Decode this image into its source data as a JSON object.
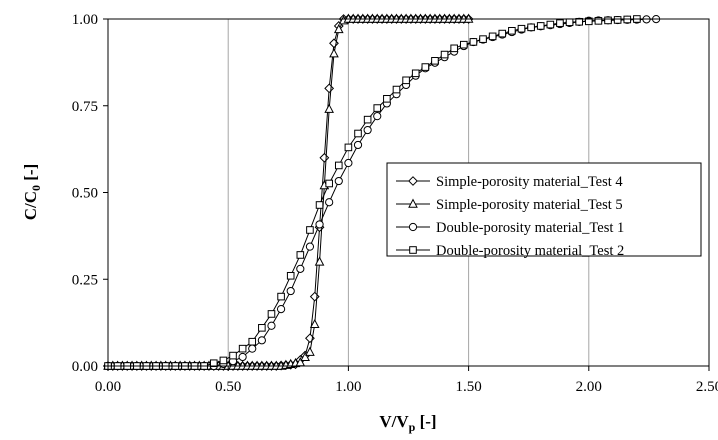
{
  "chart_data": {
    "type": "scatter",
    "xlabel": {
      "main": "V/V",
      "sub": "p",
      "tail": " [-]"
    },
    "ylabel": {
      "main": "C/C",
      "sub": "0",
      "tail": " [-]"
    },
    "xlim": [
      0,
      2.5
    ],
    "ylim": [
      0,
      1
    ],
    "xticks": [
      "0.00",
      "0.50",
      "1.00",
      "1.50",
      "2.00",
      "2.50"
    ],
    "yticks": [
      "0.00",
      "0.25",
      "0.50",
      "0.75",
      "1.00"
    ],
    "grid": "vertical",
    "legend_position": "right-center",
    "series": [
      {
        "name": "Simple-porosity material_Test 4",
        "marker": "diamond",
        "x_start": 0.0,
        "x_end": 1.5,
        "x_step": 0.02,
        "points": [
          [
            0.0,
            0
          ],
          [
            0.7,
            0
          ],
          [
            0.78,
            0.005
          ],
          [
            0.82,
            0.03
          ],
          [
            0.84,
            0.08
          ],
          [
            0.86,
            0.2
          ],
          [
            0.88,
            0.4
          ],
          [
            0.9,
            0.6
          ],
          [
            0.92,
            0.8
          ],
          [
            0.94,
            0.93
          ],
          [
            0.96,
            0.98
          ],
          [
            0.98,
            1.0
          ],
          [
            1.5,
            1.0
          ]
        ]
      },
      {
        "name": "Simple-porosity material_Test 5",
        "marker": "triangle",
        "x_start": 0.0,
        "x_end": 1.5,
        "x_step": 0.02,
        "points": [
          [
            0.0,
            0
          ],
          [
            0.72,
            0
          ],
          [
            0.8,
            0.01
          ],
          [
            0.84,
            0.04
          ],
          [
            0.86,
            0.12
          ],
          [
            0.88,
            0.3
          ],
          [
            0.9,
            0.52
          ],
          [
            0.92,
            0.74
          ],
          [
            0.94,
            0.9
          ],
          [
            0.96,
            0.97
          ],
          [
            0.98,
            0.995
          ],
          [
            1.0,
            1.0
          ],
          [
            1.5,
            1.0
          ]
        ]
      },
      {
        "name": "Double-porosity material_Test 1",
        "marker": "circle",
        "x_start": 0.0,
        "x_end": 2.3,
        "x_step": 0.04,
        "points": [
          [
            0.0,
            0
          ],
          [
            0.45,
            0
          ],
          [
            0.55,
            0.02
          ],
          [
            0.65,
            0.08
          ],
          [
            0.75,
            0.2
          ],
          [
            0.85,
            0.36
          ],
          [
            0.95,
            0.52
          ],
          [
            1.05,
            0.65
          ],
          [
            1.15,
            0.75
          ],
          [
            1.3,
            0.85
          ],
          [
            1.5,
            0.93
          ],
          [
            1.75,
            0.975
          ],
          [
            2.0,
            0.995
          ],
          [
            2.3,
            1.0
          ]
        ]
      },
      {
        "name": "Double-porosity material_Test 2",
        "marker": "square",
        "x_start": 0.0,
        "x_end": 2.2,
        "x_step": 0.04,
        "points": [
          [
            0.0,
            0
          ],
          [
            0.4,
            0
          ],
          [
            0.5,
            0.02
          ],
          [
            0.6,
            0.07
          ],
          [
            0.7,
            0.17
          ],
          [
            0.8,
            0.32
          ],
          [
            0.9,
            0.5
          ],
          [
            1.0,
            0.63
          ],
          [
            1.1,
            0.73
          ],
          [
            1.25,
            0.83
          ],
          [
            1.45,
            0.92
          ],
          [
            1.7,
            0.97
          ],
          [
            1.9,
            0.99
          ],
          [
            2.2,
            1.0
          ]
        ]
      }
    ]
  }
}
